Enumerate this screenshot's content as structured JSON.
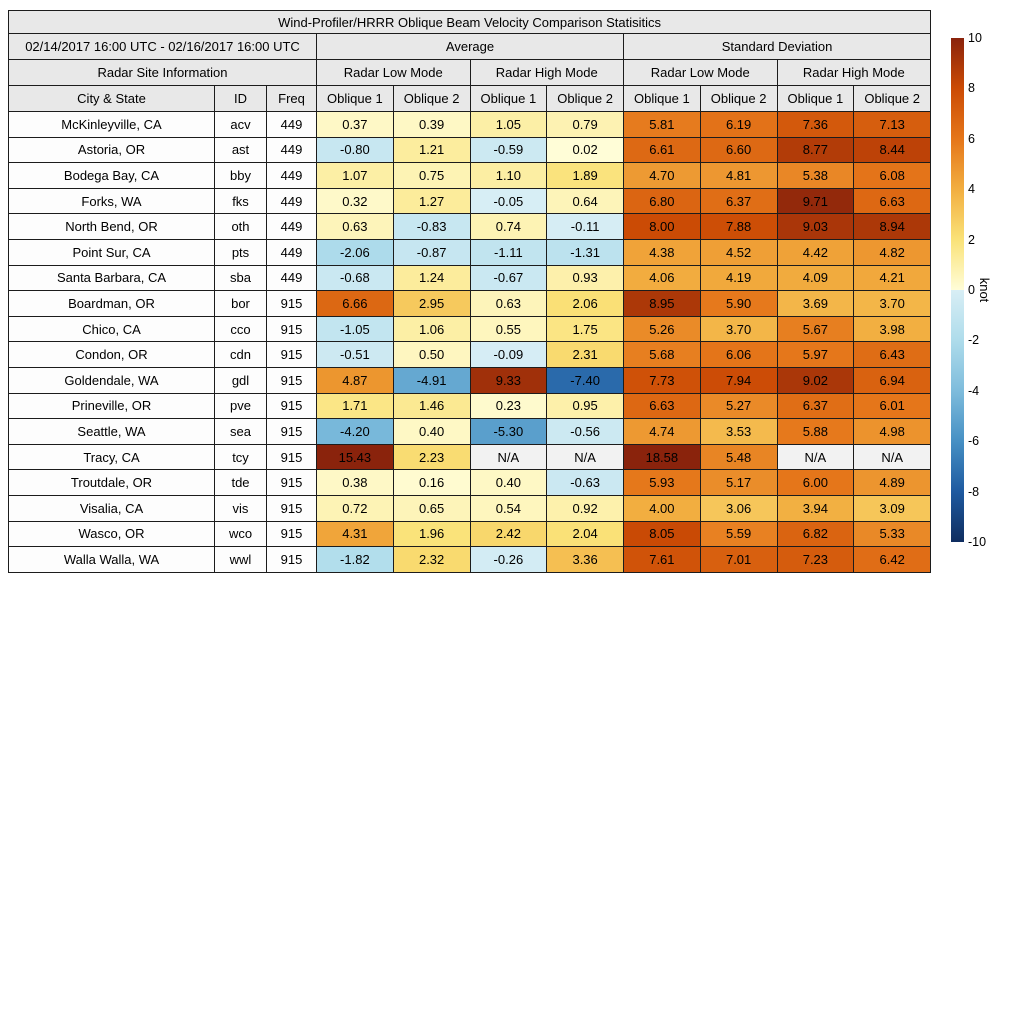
{
  "title": "Wind-Profiler/HRRR Oblique Beam Velocity Comparison Statisitics",
  "header": {
    "date_range": "02/14/2017 16:00 UTC - 02/16/2017 16:00 UTC",
    "average": "Average",
    "std_dev": "Standard Deviation",
    "site_info": "Radar Site Information",
    "low_mode": "Radar Low Mode",
    "high_mode": "Radar High Mode",
    "city_state": "City & State",
    "id": "ID",
    "freq": "Freq",
    "oblique1": "Oblique 1",
    "oblique2": "Oblique 2"
  },
  "na_label": "N/A",
  "chart_data": {
    "type": "heatmap",
    "title": "Wind-Profiler/HRRR Oblique Beam Velocity Comparison Statisitics",
    "value_unit": "knot",
    "value_range": [
      -10,
      10
    ],
    "column_groups": [
      "Average Radar Low Mode",
      "Average Radar High Mode",
      "Standard Deviation Radar Low Mode",
      "Standard Deviation Radar High Mode"
    ],
    "value_columns": [
      "Oblique 1",
      "Oblique 2",
      "Oblique 1",
      "Oblique 2",
      "Oblique 1",
      "Oblique 2",
      "Oblique 1",
      "Oblique 2"
    ],
    "rows": [
      {
        "city": "McKinleyville, CA",
        "id": "acv",
        "freq": 449,
        "values": [
          0.37,
          0.39,
          1.05,
          0.79,
          5.81,
          6.19,
          7.36,
          7.13
        ]
      },
      {
        "city": "Astoria, OR",
        "id": "ast",
        "freq": 449,
        "values": [
          -0.8,
          1.21,
          -0.59,
          0.02,
          6.61,
          6.6,
          8.77,
          8.44
        ]
      },
      {
        "city": "Bodega Bay, CA",
        "id": "bby",
        "freq": 449,
        "values": [
          1.07,
          0.75,
          1.1,
          1.89,
          4.7,
          4.81,
          5.38,
          6.08
        ]
      },
      {
        "city": "Forks, WA",
        "id": "fks",
        "freq": 449,
        "values": [
          0.32,
          1.27,
          -0.05,
          0.64,
          6.8,
          6.37,
          9.71,
          6.63
        ]
      },
      {
        "city": "North Bend, OR",
        "id": "oth",
        "freq": 449,
        "values": [
          0.63,
          -0.83,
          0.74,
          -0.11,
          8.0,
          7.88,
          9.03,
          8.94
        ]
      },
      {
        "city": "Point Sur, CA",
        "id": "pts",
        "freq": 449,
        "values": [
          -2.06,
          -0.87,
          -1.11,
          -1.31,
          4.38,
          4.52,
          4.42,
          4.82
        ]
      },
      {
        "city": "Santa Barbara, CA",
        "id": "sba",
        "freq": 449,
        "values": [
          -0.68,
          1.24,
          -0.67,
          0.93,
          4.06,
          4.19,
          4.09,
          4.21
        ]
      },
      {
        "city": "Boardman, OR",
        "id": "bor",
        "freq": 915,
        "values": [
          6.66,
          2.95,
          0.63,
          2.06,
          8.95,
          5.9,
          3.69,
          3.7
        ]
      },
      {
        "city": "Chico, CA",
        "id": "cco",
        "freq": 915,
        "values": [
          -1.05,
          1.06,
          0.55,
          1.75,
          5.26,
          3.7,
          5.67,
          3.98
        ]
      },
      {
        "city": "Condon, OR",
        "id": "cdn",
        "freq": 915,
        "values": [
          -0.51,
          0.5,
          -0.09,
          2.31,
          5.68,
          6.06,
          5.97,
          6.43
        ]
      },
      {
        "city": "Goldendale, WA",
        "id": "gdl",
        "freq": 915,
        "values": [
          4.87,
          -4.91,
          9.33,
          -7.4,
          7.73,
          7.94,
          9.02,
          6.94
        ]
      },
      {
        "city": "Prineville, OR",
        "id": "pve",
        "freq": 915,
        "values": [
          1.71,
          1.46,
          0.23,
          0.95,
          6.63,
          5.27,
          6.37,
          6.01
        ]
      },
      {
        "city": "Seattle, WA",
        "id": "sea",
        "freq": 915,
        "values": [
          -4.2,
          0.4,
          -5.3,
          -0.56,
          4.74,
          3.53,
          5.88,
          4.98
        ]
      },
      {
        "city": "Tracy, CA",
        "id": "tcy",
        "freq": 915,
        "values": [
          15.43,
          2.23,
          null,
          null,
          18.58,
          5.48,
          null,
          null
        ]
      },
      {
        "city": "Troutdale, OR",
        "id": "tde",
        "freq": 915,
        "values": [
          0.38,
          0.16,
          0.4,
          -0.63,
          5.93,
          5.17,
          6.0,
          4.89
        ]
      },
      {
        "city": "Visalia, CA",
        "id": "vis",
        "freq": 915,
        "values": [
          0.72,
          0.65,
          0.54,
          0.92,
          4.0,
          3.06,
          3.94,
          3.09
        ]
      },
      {
        "city": "Wasco, OR",
        "id": "wco",
        "freq": 915,
        "values": [
          4.31,
          1.96,
          2.42,
          2.04,
          8.05,
          5.59,
          6.82,
          5.33
        ]
      },
      {
        "city": "Walla Walla, WA",
        "id": "wwl",
        "freq": 915,
        "values": [
          -1.82,
          2.32,
          -0.26,
          3.36,
          7.61,
          7.01,
          7.23,
          6.42
        ]
      }
    ]
  },
  "colorbar": {
    "label": "knot",
    "ticks": [
      10,
      8,
      6,
      4,
      2,
      0,
      -2,
      -4,
      -6,
      -8,
      -10
    ],
    "min": -10,
    "max": 10,
    "stops": [
      {
        "v": -10,
        "c": "#0f2d5f"
      },
      {
        "v": -8,
        "c": "#1e5aa0"
      },
      {
        "v": -6,
        "c": "#4690c4"
      },
      {
        "v": -4,
        "c": "#7ebcdc"
      },
      {
        "v": -2,
        "c": "#aedceb"
      },
      {
        "v": -0.001,
        "c": "#d8eef5"
      },
      {
        "v": 0,
        "c": "#fffdd8"
      },
      {
        "v": 2,
        "c": "#fae278"
      },
      {
        "v": 4,
        "c": "#f2ae40"
      },
      {
        "v": 6,
        "c": "#e5761a"
      },
      {
        "v": 8,
        "c": "#cb4b05"
      },
      {
        "v": 10,
        "c": "#8a230c"
      }
    ]
  },
  "colors": {
    "header_bg": "#e8e8e8",
    "na_bg": "#f2f2f2",
    "row_bg": "#fdfdfd",
    "border": "#1c1c1c"
  }
}
